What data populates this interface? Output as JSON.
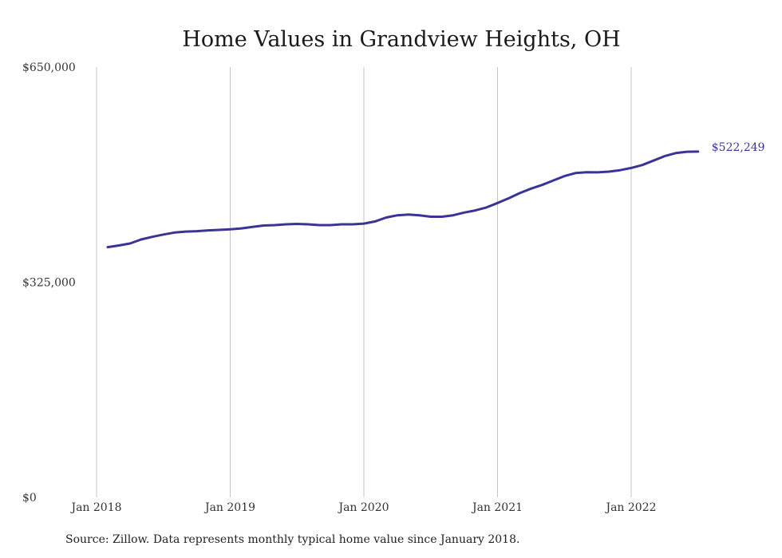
{
  "chart_data": {
    "type": "line",
    "title": "Home Values in Grandview Heights, OH",
    "xlabel": "",
    "ylabel": "",
    "ylim": [
      0,
      650000
    ],
    "yticks": [
      0,
      325000,
      650000
    ],
    "ytick_labels": [
      "$0",
      "$325,000",
      "$650,000"
    ],
    "xticks": [
      "2018-01",
      "2019-01",
      "2020-01",
      "2021-01",
      "2022-01"
    ],
    "xtick_labels": [
      "Jan 2018",
      "Jan 2019",
      "Jan 2020",
      "Jan 2021",
      "Jan 2022"
    ],
    "grid": {
      "vertical": true,
      "horizontal": false
    },
    "legend": "none",
    "end_label": "$522,249",
    "series": [
      {
        "color": "#3b3494",
        "points": [
          [
            "2018-02",
            378000
          ],
          [
            "2018-03",
            380500
          ],
          [
            "2018-04",
            383500
          ],
          [
            "2018-05",
            389500
          ],
          [
            "2018-06",
            393500
          ],
          [
            "2018-07",
            397000
          ],
          [
            "2018-08",
            400000
          ],
          [
            "2018-09",
            401500
          ],
          [
            "2018-10",
            402000
          ],
          [
            "2018-11",
            403300
          ],
          [
            "2018-12",
            404000
          ],
          [
            "2019-01",
            405000
          ],
          [
            "2019-02",
            406300
          ],
          [
            "2019-03",
            408500
          ],
          [
            "2019-04",
            410600
          ],
          [
            "2019-05",
            411200
          ],
          [
            "2019-06",
            412400
          ],
          [
            "2019-07",
            413000
          ],
          [
            "2019-08",
            412400
          ],
          [
            "2019-09",
            411200
          ],
          [
            "2019-10",
            411200
          ],
          [
            "2019-11",
            412400
          ],
          [
            "2019-12",
            412400
          ],
          [
            "2020-01",
            413500
          ],
          [
            "2020-02",
            416800
          ],
          [
            "2020-03",
            422700
          ],
          [
            "2020-04",
            426100
          ],
          [
            "2020-05",
            427200
          ],
          [
            "2020-06",
            426100
          ],
          [
            "2020-07",
            423900
          ],
          [
            "2020-08",
            423900
          ],
          [
            "2020-09",
            426100
          ],
          [
            "2020-10",
            430100
          ],
          [
            "2020-11",
            433400
          ],
          [
            "2020-12",
            437900
          ],
          [
            "2021-01",
            444600
          ],
          [
            "2021-02",
            451700
          ],
          [
            "2021-03",
            459600
          ],
          [
            "2021-04",
            466300
          ],
          [
            "2021-05",
            471900
          ],
          [
            "2021-06",
            478600
          ],
          [
            "2021-07",
            485300
          ],
          [
            "2021-08",
            489800
          ],
          [
            "2021-09",
            491000
          ],
          [
            "2021-10",
            490900
          ],
          [
            "2021-11",
            492000
          ],
          [
            "2021-12",
            494200
          ],
          [
            "2022-01",
            497600
          ],
          [
            "2022-02",
            502000
          ],
          [
            "2022-03",
            508700
          ],
          [
            "2022-04",
            515400
          ],
          [
            "2022-05",
            520000
          ],
          [
            "2022-06",
            522000
          ],
          [
            "2022-07",
            522249
          ]
        ]
      }
    ]
  },
  "source_text": "Source: Zillow. Data represents monthly typical home value since January 2018."
}
